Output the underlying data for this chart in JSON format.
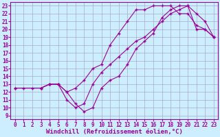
{
  "xlabel": "Windchill (Refroidissement éolien,°C)",
  "bg_color": "#cceeff",
  "grid_color": "#aaaacc",
  "line_color": "#990099",
  "xmin": 0,
  "xmax": 23,
  "ymin": 9,
  "ymax": 23,
  "line1_x": [
    0,
    1,
    2,
    3,
    4,
    5,
    6,
    7,
    8,
    9,
    10,
    11,
    12,
    13,
    14,
    15,
    16,
    17,
    18,
    19,
    20,
    21,
    22,
    23
  ],
  "line1_y": [
    12.5,
    12.5,
    12.5,
    12.5,
    13.0,
    13.0,
    12.0,
    10.5,
    9.5,
    10.0,
    12.5,
    13.5,
    14.0,
    15.5,
    17.5,
    18.5,
    19.5,
    21.5,
    22.5,
    23.0,
    23.0,
    20.0,
    20.0,
    19.0
  ],
  "line2_x": [
    3,
    4,
    5,
    6,
    7,
    8,
    9,
    10,
    11,
    12,
    13,
    14,
    15,
    16,
    17,
    18,
    19,
    20,
    21,
    22,
    23
  ],
  "line2_y": [
    12.5,
    13.0,
    13.0,
    12.0,
    12.5,
    13.5,
    15.0,
    15.5,
    18.0,
    19.5,
    21.0,
    22.5,
    22.5,
    23.0,
    23.0,
    23.0,
    22.0,
    22.0,
    20.5,
    20.0,
    19.0
  ],
  "line3_x": [
    0,
    3,
    4,
    5,
    6,
    7,
    8,
    9,
    10,
    11,
    12,
    13,
    14,
    15,
    16,
    17,
    18,
    19,
    20,
    21,
    22,
    23
  ],
  "line3_y": [
    12.5,
    12.5,
    13.0,
    13.0,
    11.0,
    10.0,
    10.5,
    13.0,
    14.5,
    15.5,
    16.5,
    17.5,
    18.5,
    19.0,
    20.0,
    21.0,
    22.0,
    22.5,
    23.0,
    22.0,
    21.0,
    19.0
  ],
  "tick_fontsize": 5.5,
  "xlabel_fontsize": 6.5
}
